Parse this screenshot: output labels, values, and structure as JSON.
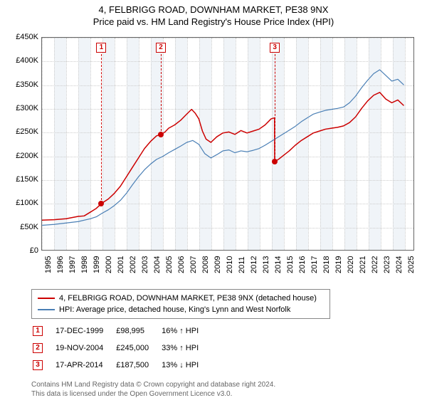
{
  "title": {
    "line1": "4, FELBRIGG ROAD, DOWNHAM MARKET, PE38 9NX",
    "line2": "Price paid vs. HM Land Registry's House Price Index (HPI)"
  },
  "chart": {
    "type": "line",
    "background_color": "#ffffff",
    "border_color": "#666666",
    "grid_color": "#cccccc",
    "shaded_band_color": "#f0f4f8",
    "xlim": [
      1995,
      2025.8
    ],
    "ylim": [
      0,
      450000
    ],
    "ytick_step": 50000,
    "yticks": [
      "£0",
      "£50K",
      "£100K",
      "£150K",
      "£200K",
      "£250K",
      "£300K",
      "£350K",
      "£400K",
      "£450K"
    ],
    "xticks": [
      1995,
      1996,
      1997,
      1998,
      1999,
      2000,
      2001,
      2002,
      2003,
      2004,
      2005,
      2006,
      2007,
      2008,
      2009,
      2010,
      2011,
      2012,
      2013,
      2014,
      2015,
      2016,
      2017,
      2018,
      2019,
      2020,
      2021,
      2022,
      2023,
      2024,
      2025
    ],
    "tick_fontsize": 11,
    "series": [
      {
        "id": "property",
        "label": "4, FELBRIGG ROAD, DOWNHAM MARKET, PE38 9NX (detached house)",
        "color": "#cc0000",
        "line_width": 1.5,
        "points": [
          [
            1995.0,
            63000
          ],
          [
            1996.0,
            64000
          ],
          [
            1997.0,
            66000
          ],
          [
            1998.0,
            71000
          ],
          [
            1998.5,
            72000
          ],
          [
            1999.0,
            80000
          ],
          [
            1999.5,
            88000
          ],
          [
            1999.96,
            98995
          ],
          [
            2000.5,
            108000
          ],
          [
            2001.0,
            120000
          ],
          [
            2001.5,
            135000
          ],
          [
            2002.0,
            155000
          ],
          [
            2002.5,
            175000
          ],
          [
            2003.0,
            195000
          ],
          [
            2003.5,
            215000
          ],
          [
            2004.0,
            230000
          ],
          [
            2004.5,
            242000
          ],
          [
            2004.88,
            245000
          ],
          [
            2005.2,
            250000
          ],
          [
            2005.5,
            258000
          ],
          [
            2006.0,
            265000
          ],
          [
            2006.5,
            275000
          ],
          [
            2007.0,
            288000
          ],
          [
            2007.4,
            298000
          ],
          [
            2007.7,
            290000
          ],
          [
            2008.0,
            278000
          ],
          [
            2008.3,
            252000
          ],
          [
            2008.6,
            235000
          ],
          [
            2009.0,
            228000
          ],
          [
            2009.5,
            240000
          ],
          [
            2010.0,
            248000
          ],
          [
            2010.5,
            250000
          ],
          [
            2011.0,
            245000
          ],
          [
            2011.5,
            253000
          ],
          [
            2012.0,
            248000
          ],
          [
            2012.5,
            252000
          ],
          [
            2013.0,
            256000
          ],
          [
            2013.5,
            265000
          ],
          [
            2014.0,
            278000
          ],
          [
            2014.28,
            280000
          ],
          [
            2014.29,
            187500
          ],
          [
            2014.6,
            192000
          ],
          [
            2015.0,
            200000
          ],
          [
            2015.5,
            210000
          ],
          [
            2016.0,
            222000
          ],
          [
            2016.5,
            232000
          ],
          [
            2017.0,
            240000
          ],
          [
            2017.5,
            248000
          ],
          [
            2018.0,
            252000
          ],
          [
            2018.5,
            256000
          ],
          [
            2019.0,
            258000
          ],
          [
            2019.5,
            260000
          ],
          [
            2020.0,
            263000
          ],
          [
            2020.5,
            270000
          ],
          [
            2021.0,
            282000
          ],
          [
            2021.5,
            300000
          ],
          [
            2022.0,
            316000
          ],
          [
            2022.5,
            328000
          ],
          [
            2023.0,
            334000
          ],
          [
            2023.5,
            320000
          ],
          [
            2024.0,
            312000
          ],
          [
            2024.5,
            318000
          ],
          [
            2025.0,
            306000
          ]
        ]
      },
      {
        "id": "hpi",
        "label": "HPI: Average price, detached house, King's Lynn and West Norfolk",
        "color": "#4a7fb5",
        "line_width": 1.2,
        "points": [
          [
            1995.0,
            52000
          ],
          [
            1996.0,
            54000
          ],
          [
            1997.0,
            57000
          ],
          [
            1998.0,
            60000
          ],
          [
            1999.0,
            66000
          ],
          [
            1999.5,
            70000
          ],
          [
            2000.0,
            78000
          ],
          [
            2000.5,
            85000
          ],
          [
            2001.0,
            94000
          ],
          [
            2001.5,
            105000
          ],
          [
            2002.0,
            120000
          ],
          [
            2002.5,
            138000
          ],
          [
            2003.0,
            155000
          ],
          [
            2003.5,
            170000
          ],
          [
            2004.0,
            182000
          ],
          [
            2004.5,
            192000
          ],
          [
            2005.0,
            198000
          ],
          [
            2005.5,
            206000
          ],
          [
            2006.0,
            213000
          ],
          [
            2006.5,
            220000
          ],
          [
            2007.0,
            228000
          ],
          [
            2007.5,
            232000
          ],
          [
            2008.0,
            224000
          ],
          [
            2008.5,
            204000
          ],
          [
            2009.0,
            195000
          ],
          [
            2009.5,
            202000
          ],
          [
            2010.0,
            210000
          ],
          [
            2010.5,
            212000
          ],
          [
            2011.0,
            206000
          ],
          [
            2011.5,
            210000
          ],
          [
            2012.0,
            208000
          ],
          [
            2012.5,
            211000
          ],
          [
            2013.0,
            215000
          ],
          [
            2013.5,
            222000
          ],
          [
            2014.0,
            230000
          ],
          [
            2014.5,
            238000
          ],
          [
            2015.0,
            246000
          ],
          [
            2015.5,
            254000
          ],
          [
            2016.0,
            262000
          ],
          [
            2016.5,
            272000
          ],
          [
            2017.0,
            280000
          ],
          [
            2017.5,
            288000
          ],
          [
            2018.0,
            292000
          ],
          [
            2018.5,
            296000
          ],
          [
            2019.0,
            298000
          ],
          [
            2019.5,
            300000
          ],
          [
            2020.0,
            303000
          ],
          [
            2020.5,
            312000
          ],
          [
            2021.0,
            326000
          ],
          [
            2021.5,
            344000
          ],
          [
            2022.0,
            360000
          ],
          [
            2022.5,
            374000
          ],
          [
            2023.0,
            382000
          ],
          [
            2023.5,
            370000
          ],
          [
            2024.0,
            358000
          ],
          [
            2024.5,
            362000
          ],
          [
            2025.0,
            350000
          ]
        ]
      }
    ],
    "sale_markers": [
      {
        "n": "1",
        "x": 1999.96,
        "y": 98995,
        "dot": true
      },
      {
        "n": "2",
        "x": 2004.88,
        "y": 245000,
        "dot": true
      },
      {
        "n": "3",
        "x": 2014.29,
        "y": 187500,
        "dot": true
      }
    ]
  },
  "legend": {
    "rows": [
      {
        "color": "#cc0000",
        "label": "4, FELBRIGG ROAD, DOWNHAM MARKET, PE38 9NX (detached house)"
      },
      {
        "color": "#4a7fb5",
        "label": "HPI: Average price, detached house, King's Lynn and West Norfolk"
      }
    ]
  },
  "sales_table": {
    "rows": [
      {
        "n": "1",
        "date": "17-DEC-1999",
        "price": "£98,995",
        "delta": "16% ↑ HPI"
      },
      {
        "n": "2",
        "date": "19-NOV-2004",
        "price": "£245,000",
        "delta": "33% ↑ HPI"
      },
      {
        "n": "3",
        "date": "17-APR-2014",
        "price": "£187,500",
        "delta": "13% ↓ HPI"
      }
    ]
  },
  "footer": {
    "line1": "Contains HM Land Registry data © Crown copyright and database right 2024.",
    "line2": "This data is licensed under the Open Government Licence v3.0."
  }
}
